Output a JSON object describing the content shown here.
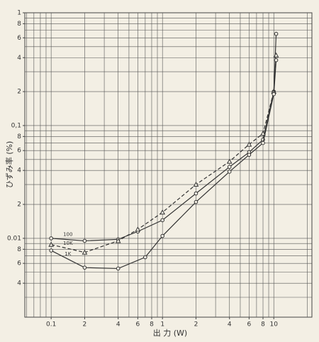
{
  "chart_data": {
    "type": "line",
    "x_label": "出 力 (W)",
    "y_label": "ひずみ率 (%)",
    "xlog": true,
    "ylog": true,
    "grid": true,
    "xlim": [
      0.058,
      22
    ],
    "ylim": [
      0.002,
      1
    ],
    "xticks": [
      {
        "value": 0.1,
        "label": "0.1"
      },
      {
        "value": 0.2,
        "label": "2"
      },
      {
        "value": 0.4,
        "label": "4"
      },
      {
        "value": 0.6,
        "label": "6"
      },
      {
        "value": 0.8,
        "label": "8"
      },
      1,
      2,
      4,
      6,
      8,
      10
    ],
    "xgrid": [
      0.06,
      0.07,
      0.08,
      0.09,
      0.1,
      0.2,
      0.3,
      0.4,
      0.5,
      0.6,
      0.7,
      0.8,
      0.9,
      1,
      2,
      3,
      4,
      5,
      6,
      7,
      8,
      9,
      10,
      20
    ],
    "yticks": [
      1,
      {
        "value": 0.8,
        "label": "8"
      },
      {
        "value": 0.6,
        "label": "6"
      },
      {
        "value": 0.4,
        "label": "4"
      },
      {
        "value": 0.2,
        "label": "2"
      },
      {
        "value": 0.1,
        "label": "0,1"
      },
      {
        "value": 0.08,
        "label": "8"
      },
      {
        "value": 0.06,
        "label": "6"
      },
      {
        "value": 0.04,
        "label": "4"
      },
      {
        "value": 0.02,
        "label": "2"
      },
      0.01,
      {
        "value": 0.008,
        "label": "8"
      },
      {
        "value": 0.006,
        "label": "6"
      },
      {
        "value": 0.004,
        "label": "4"
      }
    ],
    "ygrid": [
      0.003,
      0.004,
      0.005,
      0.006,
      0.007,
      0.008,
      0.009,
      0.01,
      0.02,
      0.03,
      0.04,
      0.05,
      0.06,
      0.07,
      0.08,
      0.09,
      0.1,
      0.2,
      0.3,
      0.4,
      0.5,
      0.6,
      0.7,
      0.8,
      0.9,
      1
    ],
    "series": [
      {
        "name": "100",
        "color": "#333",
        "marker": "circle",
        "dash": false,
        "x": [
          0.1,
          0.2,
          0.4,
          0.6,
          1,
          2,
          4,
          6,
          8,
          10,
          10.5
        ],
        "values": [
          0.01,
          0.0095,
          0.0098,
          0.0115,
          0.0145,
          0.025,
          0.043,
          0.058,
          0.075,
          0.2,
          0.65
        ]
      },
      {
        "name": "10K",
        "color": "#333",
        "marker": "triangle",
        "dash": true,
        "x": [
          0.1,
          0.2,
          0.4,
          0.6,
          1,
          2,
          4,
          6,
          8,
          10,
          10.5
        ],
        "values": [
          0.0088,
          0.0075,
          0.0095,
          0.012,
          0.017,
          0.03,
          0.048,
          0.068,
          0.085,
          0.2,
          0.42
        ]
      },
      {
        "name": "1K",
        "color": "#333",
        "marker": "circle",
        "dash": false,
        "x": [
          0.1,
          0.2,
          0.4,
          0.7,
          1,
          2,
          4,
          6,
          8,
          10,
          10.5
        ],
        "values": [
          0.0078,
          0.0055,
          0.0054,
          0.0068,
          0.0105,
          0.021,
          0.039,
          0.055,
          0.07,
          0.19,
          0.38
        ]
      }
    ]
  }
}
